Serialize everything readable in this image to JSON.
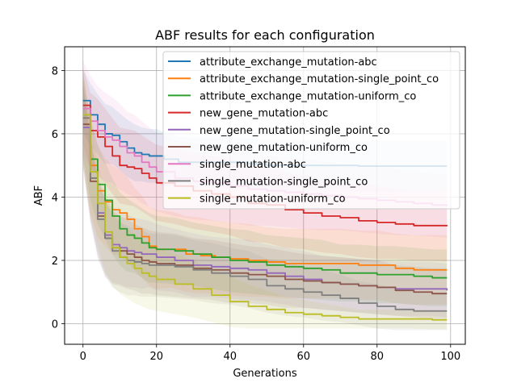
{
  "chart_data": {
    "type": "line",
    "title": "ABF results for each configuration",
    "xlabel": "Generations",
    "ylabel": "ABF",
    "xlim": [
      -5,
      104
    ],
    "ylim": [
      -0.65,
      8.75
    ],
    "xticks": [
      0,
      20,
      40,
      60,
      80,
      100
    ],
    "yticks": [
      0,
      2,
      4,
      6,
      8
    ],
    "grid": true,
    "legend_position": "top-right",
    "series": [
      {
        "name": "attribute_exchange_mutation-abc",
        "color": "#1f77b4",
        "x": [
          0,
          2,
          4,
          6,
          8,
          10,
          12,
          14,
          16,
          18,
          20,
          22,
          24,
          26,
          30,
          35,
          40,
          45,
          50,
          55,
          60,
          65,
          70,
          75,
          80,
          85,
          90,
          95,
          99
        ],
        "y": [
          7.05,
          6.6,
          6.3,
          6.0,
          5.95,
          5.75,
          5.55,
          5.4,
          5.35,
          5.3,
          5.3,
          5.2,
          5.2,
          5.1,
          5.1,
          5.1,
          5.1,
          5.05,
          5.0,
          5.0,
          5.0,
          5.0,
          5.0,
          4.98,
          4.98,
          4.98,
          4.98,
          4.98,
          4.98
        ],
        "band": [
          1.0,
          1.0,
          0.95,
          0.95,
          0.9,
          0.9,
          0.9,
          0.9,
          0.85,
          0.85,
          0.85,
          0.85,
          0.85,
          0.8,
          0.8,
          0.8,
          0.8,
          0.8,
          0.8,
          0.8,
          0.8,
          0.8,
          0.8,
          0.8,
          0.8,
          0.8,
          0.8,
          0.8,
          0.8
        ]
      },
      {
        "name": "attribute_exchange_mutation-single_point_co",
        "color": "#ff7f0e",
        "x": [
          0,
          2,
          4,
          6,
          8,
          10,
          12,
          14,
          16,
          18,
          20,
          24,
          28,
          32,
          36,
          40,
          45,
          50,
          55,
          60,
          65,
          70,
          75,
          80,
          85,
          90,
          95,
          99
        ],
        "y": [
          6.5,
          5.0,
          4.2,
          3.85,
          3.6,
          3.5,
          3.3,
          3.0,
          2.75,
          2.45,
          2.35,
          2.35,
          2.2,
          2.15,
          2.1,
          2.05,
          2.0,
          1.95,
          1.9,
          1.9,
          1.9,
          1.9,
          1.85,
          1.85,
          1.75,
          1.7,
          1.7,
          1.7
        ],
        "band": [
          1.5,
          1.5,
          1.45,
          1.4,
          1.4,
          1.35,
          1.35,
          1.3,
          1.3,
          1.25,
          1.25,
          1.2,
          1.2,
          1.2,
          1.15,
          1.15,
          1.15,
          1.1,
          1.1,
          1.1,
          1.1,
          1.1,
          1.1,
          1.1,
          1.1,
          1.1,
          1.1,
          1.1
        ]
      },
      {
        "name": "attribute_exchange_mutation-uniform_co",
        "color": "#2ca02c",
        "x": [
          0,
          2,
          4,
          6,
          8,
          10,
          12,
          14,
          16,
          18,
          20,
          25,
          30,
          35,
          40,
          45,
          50,
          55,
          60,
          65,
          70,
          75,
          80,
          85,
          90,
          95,
          99
        ],
        "y": [
          6.6,
          5.2,
          4.4,
          3.9,
          3.4,
          3.0,
          2.8,
          2.7,
          2.55,
          2.4,
          2.35,
          2.3,
          2.2,
          2.1,
          2.0,
          1.95,
          1.85,
          1.8,
          1.75,
          1.7,
          1.6,
          1.6,
          1.55,
          1.55,
          1.5,
          1.45,
          1.45
        ],
        "band": [
          1.3,
          1.3,
          1.25,
          1.2,
          1.2,
          1.15,
          1.15,
          1.1,
          1.1,
          1.1,
          1.05,
          1.05,
          1.0,
          1.0,
          1.0,
          1.0,
          0.95,
          0.95,
          0.95,
          0.95,
          0.9,
          0.9,
          0.9,
          0.9,
          0.9,
          0.9,
          0.9
        ]
      },
      {
        "name": "new_gene_mutation-abc",
        "color": "#d62728",
        "x": [
          0,
          2,
          4,
          6,
          8,
          10,
          12,
          14,
          16,
          18,
          20,
          25,
          30,
          35,
          40,
          45,
          50,
          55,
          60,
          65,
          70,
          75,
          80,
          85,
          90,
          95,
          99
        ],
        "y": [
          6.9,
          6.1,
          5.9,
          5.6,
          5.3,
          5.0,
          4.95,
          4.9,
          4.75,
          4.6,
          4.45,
          4.35,
          4.2,
          4.1,
          4.0,
          3.8,
          3.75,
          3.6,
          3.5,
          3.4,
          3.35,
          3.25,
          3.2,
          3.15,
          3.1,
          3.1,
          3.08
        ],
        "band": [
          1.2,
          1.2,
          1.2,
          1.2,
          1.2,
          1.2,
          1.2,
          1.2,
          1.2,
          1.2,
          1.2,
          1.2,
          1.2,
          1.2,
          1.2,
          1.2,
          1.2,
          1.2,
          1.15,
          1.15,
          1.15,
          1.15,
          1.15,
          1.1,
          1.1,
          1.1,
          1.1
        ]
      },
      {
        "name": "new_gene_mutation-single_point_co",
        "color": "#9467bd",
        "x": [
          0,
          2,
          4,
          6,
          8,
          10,
          12,
          14,
          16,
          18,
          20,
          25,
          30,
          35,
          40,
          45,
          50,
          55,
          60,
          65,
          70,
          75,
          80,
          85,
          90,
          95,
          99
        ],
        "y": [
          6.2,
          4.6,
          3.5,
          2.8,
          2.5,
          2.4,
          2.3,
          2.25,
          2.2,
          2.2,
          2.1,
          2.0,
          1.85,
          1.8,
          1.75,
          1.7,
          1.6,
          1.5,
          1.4,
          1.3,
          1.25,
          1.2,
          1.15,
          1.1,
          1.1,
          1.1,
          1.05
        ],
        "band": [
          1.3,
          1.3,
          1.25,
          1.2,
          1.2,
          1.15,
          1.15,
          1.1,
          1.1,
          1.05,
          1.05,
          1.0,
          1.0,
          0.95,
          0.95,
          0.95,
          0.9,
          0.9,
          0.9,
          0.85,
          0.85,
          0.85,
          0.85,
          0.85,
          0.85,
          0.85,
          0.85
        ]
      },
      {
        "name": "new_gene_mutation-uniform_co",
        "color": "#8c564b",
        "x": [
          0,
          2,
          4,
          6,
          8,
          10,
          12,
          14,
          16,
          18,
          20,
          25,
          30,
          35,
          40,
          45,
          50,
          55,
          60,
          65,
          70,
          75,
          80,
          85,
          90,
          95,
          99
        ],
        "y": [
          6.3,
          4.5,
          3.4,
          2.7,
          2.4,
          2.3,
          2.2,
          2.1,
          2.0,
          1.95,
          1.9,
          1.85,
          1.75,
          1.7,
          1.6,
          1.55,
          1.5,
          1.4,
          1.35,
          1.3,
          1.25,
          1.2,
          1.15,
          1.05,
          1.0,
          0.95,
          0.95
        ],
        "band": [
          1.3,
          1.3,
          1.25,
          1.2,
          1.15,
          1.1,
          1.1,
          1.05,
          1.05,
          1.0,
          1.0,
          1.0,
          0.95,
          0.95,
          0.95,
          0.9,
          0.9,
          0.9,
          0.85,
          0.85,
          0.85,
          0.85,
          0.85,
          0.8,
          0.8,
          0.8,
          0.8
        ]
      },
      {
        "name": "single_mutation-abc",
        "color": "#e377c2",
        "x": [
          0,
          2,
          4,
          6,
          8,
          10,
          12,
          14,
          16,
          18,
          20,
          25,
          30,
          35,
          40,
          45,
          50,
          55,
          60,
          65,
          70,
          75,
          80,
          85,
          90,
          95,
          99
        ],
        "y": [
          6.8,
          6.4,
          6.1,
          5.9,
          5.8,
          5.6,
          5.4,
          5.3,
          5.1,
          4.95,
          4.8,
          4.6,
          4.5,
          4.45,
          4.35,
          4.25,
          4.2,
          4.15,
          4.1,
          4.05,
          4.0,
          3.95,
          3.9,
          3.85,
          3.8,
          3.75,
          3.72
        ],
        "band": [
          1.5,
          1.45,
          1.4,
          1.4,
          1.35,
          1.35,
          1.3,
          1.3,
          1.3,
          1.25,
          1.25,
          1.2,
          1.2,
          1.2,
          1.15,
          1.15,
          1.1,
          1.1,
          1.1,
          1.1,
          1.05,
          1.05,
          1.05,
          1.05,
          1.0,
          1.0,
          1.0
        ]
      },
      {
        "name": "single_mutation-single_point_co",
        "color": "#7f7f7f",
        "x": [
          0,
          2,
          4,
          6,
          8,
          10,
          12,
          14,
          16,
          18,
          20,
          25,
          30,
          35,
          40,
          45,
          50,
          55,
          60,
          65,
          70,
          75,
          80,
          85,
          90,
          95,
          99
        ],
        "y": [
          6.5,
          4.6,
          3.3,
          2.7,
          2.3,
          2.1,
          2.0,
          1.95,
          1.9,
          1.85,
          1.85,
          1.8,
          1.7,
          1.6,
          1.5,
          1.4,
          1.2,
          1.1,
          1.0,
          0.9,
          0.8,
          0.65,
          0.55,
          0.45,
          0.4,
          0.4,
          0.4
        ],
        "band": [
          1.3,
          1.3,
          1.25,
          1.2,
          1.15,
          1.1,
          1.1,
          1.05,
          1.05,
          1.0,
          1.0,
          1.0,
          0.95,
          0.95,
          0.9,
          0.9,
          0.85,
          0.85,
          0.8,
          0.8,
          0.75,
          0.7,
          0.7,
          0.65,
          0.6,
          0.6,
          0.6
        ]
      },
      {
        "name": "single_mutation-uniform_co",
        "color": "#bcbd22",
        "x": [
          0,
          2,
          4,
          6,
          8,
          10,
          12,
          14,
          16,
          18,
          20,
          25,
          30,
          35,
          40,
          45,
          50,
          55,
          60,
          65,
          70,
          75,
          80,
          85,
          90,
          95,
          99
        ],
        "y": [
          6.6,
          4.8,
          3.8,
          2.9,
          2.4,
          2.1,
          1.9,
          1.75,
          1.6,
          1.5,
          1.4,
          1.25,
          1.1,
          0.9,
          0.7,
          0.55,
          0.45,
          0.35,
          0.3,
          0.25,
          0.2,
          0.15,
          0.15,
          0.15,
          0.15,
          0.12,
          0.12
        ],
        "band": [
          1.4,
          1.35,
          1.3,
          1.25,
          1.2,
          1.15,
          1.1,
          1.1,
          1.05,
          1.05,
          1.0,
          0.95,
          0.9,
          0.85,
          0.8,
          0.7,
          0.6,
          0.5,
          0.45,
          0.4,
          0.35,
          0.3,
          0.3,
          0.3,
          0.3,
          0.3,
          0.3
        ]
      }
    ]
  }
}
